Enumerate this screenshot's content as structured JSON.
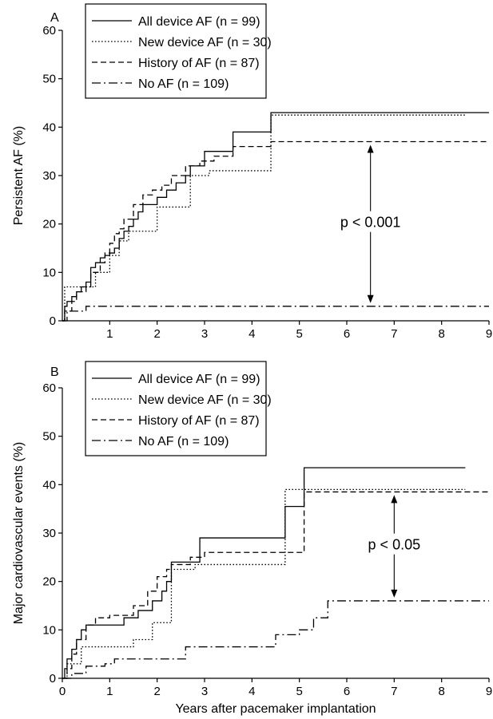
{
  "figure": {
    "xlabel": "Years after pacemaker implantation"
  },
  "chart_data": [
    {
      "panel": "A",
      "type": "line",
      "ylabel": "Persistent AF (%)",
      "xlim": [
        0,
        9
      ],
      "ylim": [
        0,
        60
      ],
      "xticks": [
        1,
        2,
        3,
        4,
        5,
        6,
        7,
        8,
        9
      ],
      "yticks": [
        0,
        10,
        20,
        30,
        40,
        50,
        60
      ],
      "legend_position": "top-left",
      "annotation": {
        "text": "p < 0.001",
        "x": 6.5,
        "from_y": 37,
        "to_y": 3
      },
      "series": [
        {
          "name": "All device AF (n = 99)",
          "dash": "solid",
          "x": [
            0,
            0.05,
            0.1,
            0.2,
            0.3,
            0.4,
            0.5,
            0.6,
            0.7,
            0.8,
            0.9,
            1.0,
            1.1,
            1.2,
            1.3,
            1.4,
            1.5,
            1.6,
            1.7,
            1.9,
            2.0,
            2.2,
            2.4,
            2.6,
            2.7,
            3.0,
            3.6,
            4.4,
            9.0
          ],
          "y": [
            0,
            3,
            4,
            5,
            6,
            7,
            8,
            11,
            12,
            13,
            13.5,
            14,
            15,
            17,
            18.5,
            19.5,
            21,
            22.5,
            24,
            24,
            25.5,
            27,
            28.5,
            30,
            32,
            35,
            39,
            43,
            43
          ]
        },
        {
          "name": "New device AF (n = 30)",
          "dash": "dotted",
          "x": [
            0,
            0.05,
            0.5,
            0.7,
            1.0,
            1.2,
            1.4,
            1.6,
            2.0,
            2.7,
            3.1,
            4.4,
            8.5
          ],
          "y": [
            0,
            7,
            7,
            10,
            13.5,
            16.5,
            18.5,
            18.5,
            23.5,
            30,
            31,
            42.5,
            42.5
          ]
        },
        {
          "name": "History of AF (n = 87)",
          "dash": "dashed",
          "x": [
            0,
            0.05,
            0.2,
            0.3,
            0.5,
            0.6,
            0.8,
            0.9,
            1.0,
            1.1,
            1.2,
            1.3,
            1.5,
            1.7,
            1.9,
            2.1,
            2.3,
            2.6,
            2.9,
            3.2,
            3.6,
            4.4,
            9.0
          ],
          "y": [
            0,
            2,
            4,
            6,
            7,
            10,
            12,
            14,
            16,
            18,
            19,
            21,
            24,
            26,
            27,
            28,
            30,
            32,
            33,
            34,
            36,
            37,
            37
          ]
        },
        {
          "name": "No AF (n = 109)",
          "dash": "dashdot",
          "x": [
            0,
            0.1,
            0.5,
            9.0
          ],
          "y": [
            0,
            2,
            3,
            3
          ]
        }
      ]
    },
    {
      "panel": "B",
      "type": "line",
      "ylabel": "Major cardiovascular events (%)",
      "xlim": [
        0,
        9
      ],
      "ylim": [
        0,
        60
      ],
      "xticks": [
        0,
        1,
        2,
        3,
        4,
        5,
        6,
        7,
        8,
        9
      ],
      "yticks": [
        0,
        10,
        20,
        30,
        40,
        50,
        60
      ],
      "legend_position": "top-left",
      "annotation": {
        "text": "p < 0.05",
        "x": 7,
        "from_y": 38.5,
        "to_y": 16
      },
      "series": [
        {
          "name": "All device AF (n = 99)",
          "dash": "solid",
          "x": [
            0,
            0.05,
            0.1,
            0.2,
            0.3,
            0.4,
            0.5,
            0.6,
            1.3,
            1.6,
            1.9,
            2.1,
            2.2,
            2.3,
            2.5,
            2.9,
            4.7,
            5.1,
            8.5
          ],
          "y": [
            0,
            2,
            4,
            6,
            8,
            10,
            11,
            11,
            12.5,
            14,
            16,
            18,
            20,
            24,
            24,
            29,
            35.5,
            43.5,
            43.5
          ]
        },
        {
          "name": "New device AF (n = 30)",
          "dash": "dotted",
          "x": [
            0,
            0.1,
            0.4,
            1.5,
            1.9,
            2.3,
            2.8,
            4.7,
            8.5
          ],
          "y": [
            0,
            3,
            6.5,
            8,
            11.5,
            22.5,
            23.5,
            39,
            39
          ]
        },
        {
          "name": "History of AF (n = 87)",
          "dash": "dashed",
          "x": [
            0,
            0.1,
            0.2,
            0.3,
            0.5,
            0.7,
            1.0,
            1.5,
            1.8,
            2.0,
            2.2,
            2.3,
            2.7,
            3.0,
            4.7,
            5.1,
            9.0
          ],
          "y": [
            0,
            2,
            5,
            8,
            11,
            12.5,
            13,
            15,
            18,
            21,
            22.5,
            23.5,
            25,
            26,
            26,
            38.5,
            38.5
          ]
        },
        {
          "name": "No AF (n = 109)",
          "dash": "dashdot",
          "x": [
            0,
            0.2,
            0.5,
            0.9,
            1.1,
            2.4,
            2.6,
            4.1,
            4.5,
            5.0,
            5.3,
            5.6,
            9.0
          ],
          "y": [
            0,
            1,
            2.5,
            3,
            4,
            4,
            6.5,
            6.5,
            9,
            10,
            12.5,
            16,
            16
          ]
        }
      ]
    }
  ]
}
